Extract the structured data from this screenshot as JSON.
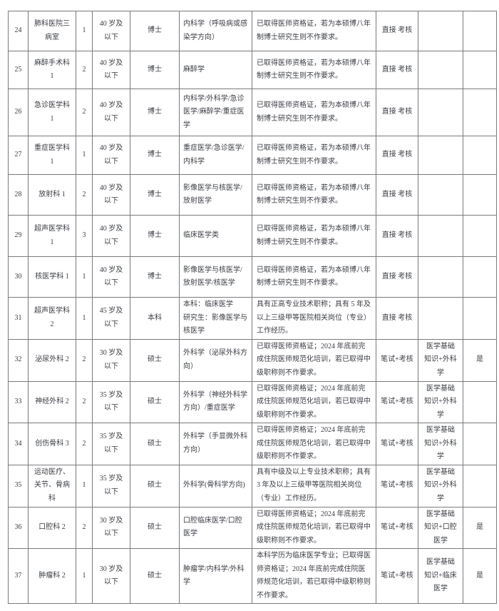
{
  "page": {
    "background": "#ffffff",
    "text_color": "#3b3d44",
    "border_color": "#7a7a7a"
  },
  "table": {
    "rows": [
      {
        "no": "24",
        "dept": "肺科医院三\n病室",
        "count": "1",
        "age": "40 岁及\n以下",
        "degree": "博士",
        "major": "内科学（呼吸病或感染学方向）",
        "requirement": "已取得医师资格证，若为本硕博八年制博士研究生则不作要求。",
        "method": "直接 考核",
        "subject": "",
        "qualified": ""
      },
      {
        "no": "25",
        "dept": "麻醉手术科\n1",
        "count": "2",
        "age": "40 岁及\n以下",
        "degree": "博士",
        "major": "麻醉学",
        "requirement": "已取得医师资格证，若为本硕博八年制博士研究生则不作要求。",
        "method": "直接 考核",
        "subject": "",
        "qualified": ""
      },
      {
        "no": "26",
        "dept": "急诊医学科\n1",
        "count": "2",
        "age": "40 岁及\n以下",
        "degree": "博士",
        "major": "内科学/外科学/急诊医学/麻醉学/重症医学",
        "requirement": "已取得医师资格证，若为本硕博八年制博士研究生则不作要求。",
        "method": "直接 考核",
        "subject": "",
        "qualified": ""
      },
      {
        "no": "27",
        "dept": "重症医学科\n1",
        "count": "1",
        "age": "40 岁及\n以下",
        "degree": "博士",
        "major": "重症医学/急诊医学/内科学",
        "requirement": "已取得医师资格证，若为本硕博八年制博士研究生则不作要求。",
        "method": "直接 考核",
        "subject": "",
        "qualified": ""
      },
      {
        "no": "28",
        "dept": "放射科 1",
        "count": "2",
        "age": "40 岁及\n以下",
        "degree": "博士",
        "major": "影像医学与核医学/放射医学",
        "requirement": "已取得医师资格证，若为本硕博八年制博士研究生则不作要求。",
        "method": "直接 考核",
        "subject": "",
        "qualified": ""
      },
      {
        "no": "29",
        "dept": "超声医学科\n1",
        "count": "3",
        "age": "40 岁及\n以下",
        "degree": "博士",
        "major": "临床医学类",
        "requirement": "已取得医师资格证，若为本硕博八年制博士研究生则不作要求。",
        "method": "直接 考核",
        "subject": "",
        "qualified": ""
      },
      {
        "no": "30",
        "dept": "核医学科 1",
        "count": "1",
        "age": "40 岁及\n以下",
        "degree": "博士",
        "major": "影像医学与核医学/放射医学/核医学",
        "requirement": "已取得医师资格证，若为本硕博八年制博士研究生则不作要求。",
        "method": "直接 考核",
        "subject": "",
        "qualified": ""
      },
      {
        "no": "31",
        "dept": "超声医学科\n2",
        "count": "1",
        "age": "45 岁及\n以下",
        "degree": "本科",
        "major": "本科：临床医学\n研究生：影像医学与核医学",
        "requirement": "具有正高专业技术职称；具有 5 年及以上三级甲等医院相关岗位（专业）工作经历。",
        "method": "直接 考核",
        "subject": "",
        "qualified": ""
      },
      {
        "no": "32",
        "dept": "泌尿外科 2",
        "count": "2",
        "age": "30 岁及\n以下",
        "degree": "硕士",
        "major": "外科学（泌尿外科方向）",
        "requirement": "已取得医师资格证；2024 年底前完成住院医师规范化培训，若已取得中级职称则不作要求。",
        "method": "笔试+考核",
        "subject": "医学基础知识+外科学",
        "qualified": "是"
      },
      {
        "no": "33",
        "dept": "神经外科 2",
        "count": "2",
        "age": "35 岁及\n以下",
        "degree": "硕士",
        "major": "外科学（神经外科学方向）/重症医学",
        "requirement": "已取得医师资格证；2024 年底前完成住院医师规范化培训，若已取得中级职称则不作要求。",
        "method": "笔试+考核",
        "subject": "医学基础知识+外科学",
        "qualified": ""
      },
      {
        "no": "34",
        "dept": "创伤骨科 3",
        "count": "2",
        "age": "35 岁及\n以下",
        "degree": "硕士",
        "major": "外科学（手显微外科方向）",
        "requirement": "已取得医师资格证；2024 年底前完成住院医师规范化培训，若已取得中级职称则不作要求。",
        "method": "笔试+考核",
        "subject": "医学基础知识+外科学",
        "qualified": ""
      },
      {
        "no": "35",
        "dept": "运动医疗、\n关节、骨病\n科",
        "count": "1",
        "age": "35 岁及\n以下",
        "degree": "硕士",
        "major": "外科学(骨科学方向)",
        "requirement": "具有中级及以上专业技术职称；具有 3 年及以上三级甲等医院相关岗位（专业）工作经历。",
        "method": "笔试+考核",
        "subject": "医学基础知识+外科学",
        "qualified": ""
      },
      {
        "no": "36",
        "dept": "口腔科 2",
        "count": "2",
        "age": "30 岁及\n以下",
        "degree": "硕士",
        "major": "口腔临床医学/口腔医学",
        "requirement": "已取得医师资格证；2024 年底前完成住院医师规范化培训，若已取得中级职称则不作要求。",
        "method": "笔试+考核",
        "subject": "医学基础知识+口腔医学",
        "qualified": "是"
      },
      {
        "no": "37",
        "dept": "肿瘤科 2",
        "count": "1",
        "age": "30 岁及\n以下",
        "degree": "硕士",
        "major": "肿瘤学/内科学/外科学",
        "requirement": "本科学历为临床医学专业；已取得医师资格证；2024 年底前完成住院医师规范化培训，若已取得中级职称则不作要求。",
        "method": "笔试+考核",
        "subject": "医学基础知识+临床医学",
        "qualified": "是"
      }
    ]
  }
}
